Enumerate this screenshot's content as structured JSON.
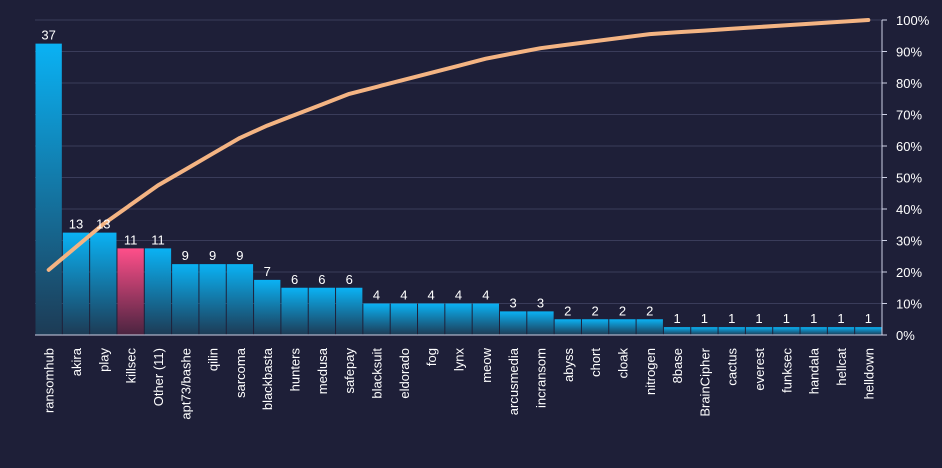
{
  "chart_data": {
    "type": "bar",
    "categories": [
      "ransomhub",
      "akira",
      "play",
      "killsec",
      "Other (11)",
      "apt73/bashe",
      "qilin",
      "sarcoma",
      "blackbasta",
      "hunters",
      "medusa",
      "safepay",
      "blacksuit",
      "eldorado",
      "fog",
      "lynx",
      "meow",
      "arcusmedia",
      "incransom",
      "abyss",
      "chort",
      "cloak",
      "nitrogen",
      "8base",
      "BrainCipher",
      "cactus",
      "everest",
      "funksec",
      "handala",
      "hellcat",
      "helldown"
    ],
    "values": [
      37,
      13,
      13,
      11,
      11,
      9,
      9,
      9,
      7,
      6,
      6,
      6,
      4,
      4,
      4,
      4,
      4,
      3,
      3,
      2,
      2,
      2,
      2,
      1,
      1,
      1,
      1,
      1,
      1,
      1,
      1
    ],
    "highlight_index": 3,
    "cumulative_percent_line": true,
    "y2_ticks": [
      "0%",
      "10%",
      "20%",
      "30%",
      "40%",
      "50%",
      "60%",
      "70%",
      "80%",
      "90%",
      "100%"
    ],
    "ylim": [
      0,
      40
    ],
    "y2lim": [
      0,
      100
    ],
    "grid": true,
    "title": "",
    "xlabel": "",
    "ylabel": "",
    "colors": {
      "background": "#1e1f38",
      "bar_top": "#0ab2f4",
      "bar_bottom": "#1d3b55",
      "highlight_top": "#ff4f8a",
      "highlight_bottom": "#4a2440",
      "line": "#f4b483",
      "grid": "#3a3c5a",
      "text": "#ffffff"
    }
  }
}
